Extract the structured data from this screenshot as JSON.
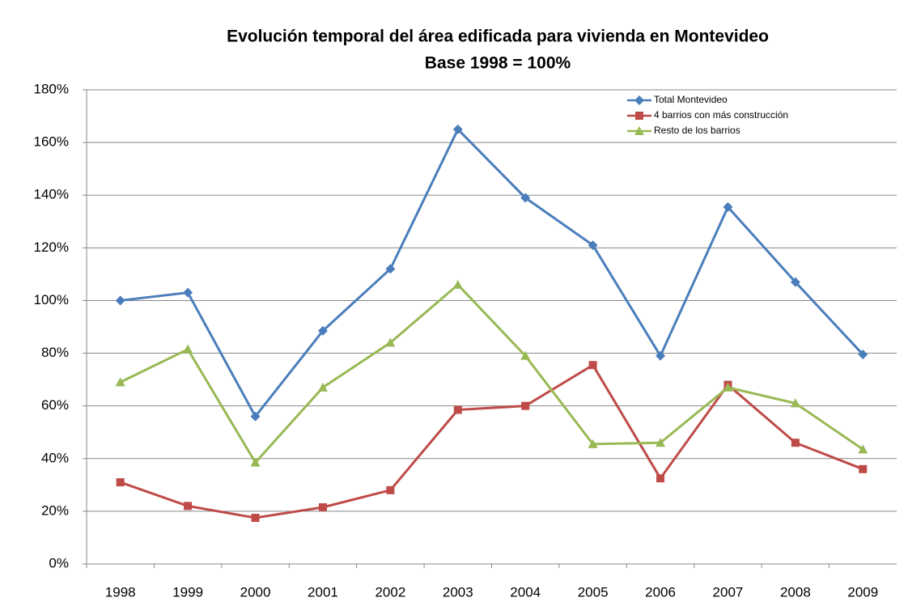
{
  "chart_data": {
    "type": "line",
    "title": "Evolución temporal del área edificada para vivienda en Montevideo",
    "subtitle": "Base 1998 = 100%",
    "categories": [
      "1998",
      "1999",
      "2000",
      "2001",
      "2002",
      "2003",
      "2004",
      "2005",
      "2006",
      "2007",
      "2008",
      "2009"
    ],
    "series": [
      {
        "name": "Total Montevideo",
        "color": "#4a7ebb",
        "marker": "diamond",
        "values": [
          100,
          103,
          56,
          88.5,
          112,
          165,
          139,
          121,
          79,
          135.5,
          107,
          79.5
        ]
      },
      {
        "name": "4 barrios con más construcción",
        "color": "#be4b48",
        "marker": "square",
        "values": [
          31,
          22,
          17.5,
          21.5,
          28,
          58.5,
          60,
          75.5,
          32.5,
          68,
          46,
          36
        ]
      },
      {
        "name": "Resto de los barrios",
        "color": "#98b954",
        "marker": "triangle",
        "values": [
          69,
          81.5,
          38.5,
          67,
          84,
          106,
          79,
          45.5,
          46,
          67,
          61,
          43.5
        ]
      }
    ],
    "ylim": [
      0,
      180
    ],
    "yticks": [
      {
        "value": 0,
        "label": "0%"
      },
      {
        "value": 20,
        "label": "20%"
      },
      {
        "value": 40,
        "label": "40%"
      },
      {
        "value": 60,
        "label": "60%"
      },
      {
        "value": 80,
        "label": "80%"
      },
      {
        "value": 100,
        "label": "100%"
      },
      {
        "value": 120,
        "label": "120%"
      },
      {
        "value": 140,
        "label": "140%"
      },
      {
        "value": 160,
        "label": "160%"
      },
      {
        "value": 180,
        "label": "180%"
      }
    ],
    "grid": true,
    "legend": "top-right"
  }
}
